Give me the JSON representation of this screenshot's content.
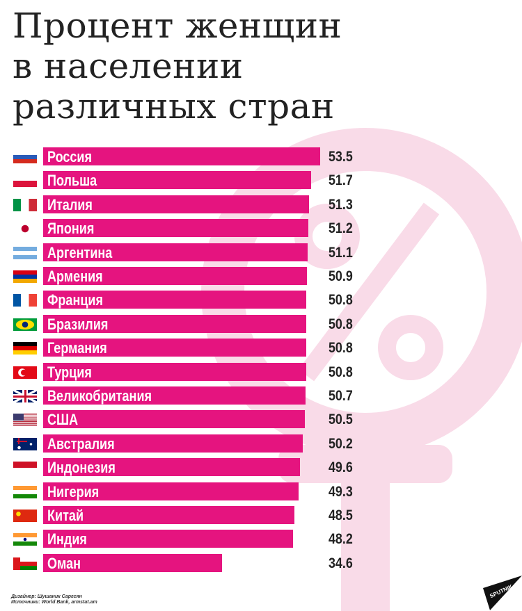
{
  "chart_data": {
    "type": "bar",
    "orientation": "horizontal",
    "title": "Процент женщин в населении различных стран",
    "categories": [
      "Россия",
      "Польша",
      "Италия",
      "Япония",
      "Аргентина",
      "Армения",
      "Франция",
      "Бразилия",
      "Германия",
      "Турция",
      "Великобритания",
      "США",
      "Австралия",
      "Индонезия",
      "Нигерия",
      "Китай",
      "Индия",
      "Оман"
    ],
    "values": [
      53.5,
      51.7,
      51.3,
      51.2,
      51.1,
      50.9,
      50.8,
      50.8,
      50.8,
      50.8,
      50.7,
      50.5,
      50.2,
      49.6,
      49.3,
      48.5,
      48.2,
      34.6
    ],
    "value_labels": [
      "53.5",
      "51.7",
      "51.3",
      "51.2",
      "51.1",
      "50.9",
      "50.8",
      "50.8",
      "50.8",
      "50.8",
      "50.7",
      "50.5",
      "50.2",
      "49.6",
      "49.3",
      "48.5",
      "48.2",
      "34.6"
    ],
    "flags": [
      "russia",
      "poland",
      "italy",
      "japan",
      "argentina",
      "armenia",
      "france",
      "brazil",
      "germany",
      "turkey",
      "uk",
      "usa",
      "australia",
      "indonesia",
      "nigeria",
      "china",
      "india",
      "oman"
    ],
    "xlim": [
      0,
      53.5
    ],
    "grid": false,
    "bar_color": "#e5147f",
    "background_symbol": "female-percent-symbol",
    "background_symbol_color": "#f9dbe8"
  },
  "title_lines": [
    "Процент женщин",
    "в населении",
    "различных стран"
  ],
  "credits": {
    "designer": "Дизайнер: Шушаник Саргсян",
    "sources": "Источники: World Bank, armstat.am"
  },
  "logo": "SPUTNIK"
}
